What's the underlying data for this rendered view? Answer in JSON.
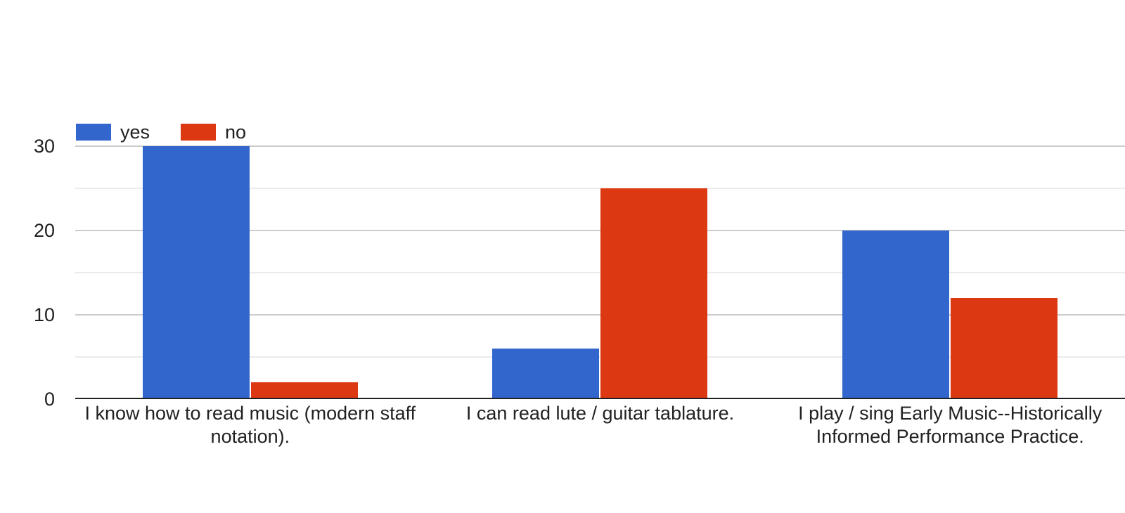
{
  "chart_data": {
    "type": "bar",
    "title": "",
    "categories": [
      "I know how to read music (modern staff notation).",
      "I can read lute / guitar tablature.",
      "I play / sing Early Music--Historically Informed Performance Practice."
    ],
    "series": [
      {
        "name": "yes",
        "color": "#3366cc",
        "values": [
          30,
          6,
          20
        ]
      },
      {
        "name": "no",
        "color": "#dc3912",
        "values": [
          2,
          25,
          12
        ]
      }
    ],
    "y_axis": {
      "ticks": [
        0,
        10,
        20,
        30
      ],
      "tick_labels": [
        "0",
        "10",
        "20",
        "30"
      ],
      "minor_gridlines": [
        5,
        15,
        25
      ],
      "range": [
        0,
        30
      ]
    },
    "legend_position": "top-left",
    "grid": true,
    "colors": {
      "major_gridline": "#cccccc",
      "minor_gridline": "#ebebeb",
      "axis_line": "#212121",
      "text": "#212121",
      "background": "#ffffff"
    }
  }
}
